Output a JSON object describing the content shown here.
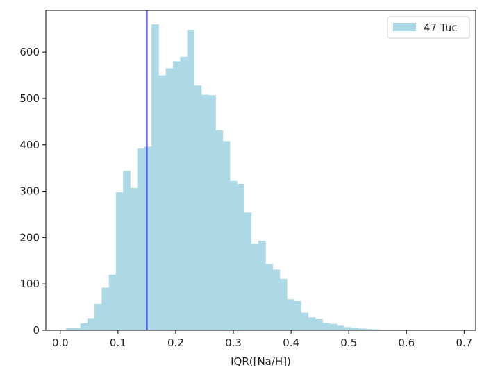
{
  "chart_data": {
    "type": "bar",
    "subtype": "histogram",
    "title": "",
    "xlabel": "IQR([Na/H])",
    "ylabel": "",
    "xlim": [
      -0.025,
      0.72
    ],
    "ylim": [
      0,
      690
    ],
    "x_ticks": [
      0.0,
      0.1,
      0.2,
      0.3,
      0.4,
      0.5,
      0.6,
      0.7
    ],
    "x_tick_labels": [
      "0.0",
      "0.1",
      "0.2",
      "0.3",
      "0.4",
      "0.5",
      "0.6",
      "0.7"
    ],
    "y_ticks": [
      0,
      100,
      200,
      300,
      400,
      500,
      600
    ],
    "y_tick_labels": [
      "0",
      "100",
      "200",
      "300",
      "400",
      "500",
      "600"
    ],
    "grid": false,
    "legend": {
      "position": "top-right",
      "entries": [
        "47 Tuc"
      ]
    },
    "bin_start": 0.01,
    "bin_width": 0.01235,
    "series": [
      {
        "name": "47 Tuc",
        "color": "#add8e6",
        "values": [
          5,
          5,
          15,
          25,
          57,
          92,
          120,
          298,
          344,
          307,
          392,
          396,
          660,
          550,
          565,
          580,
          590,
          648,
          528,
          508,
          507,
          431,
          408,
          322,
          316,
          254,
          187,
          193,
          143,
          131,
          111,
          67,
          63,
          38,
          28,
          24,
          16,
          14,
          10,
          7,
          6,
          4,
          3,
          2,
          1,
          1,
          1,
          0,
          0
        ]
      }
    ],
    "vertical_line": {
      "x": 0.15,
      "color": "#1c1cdc"
    }
  }
}
